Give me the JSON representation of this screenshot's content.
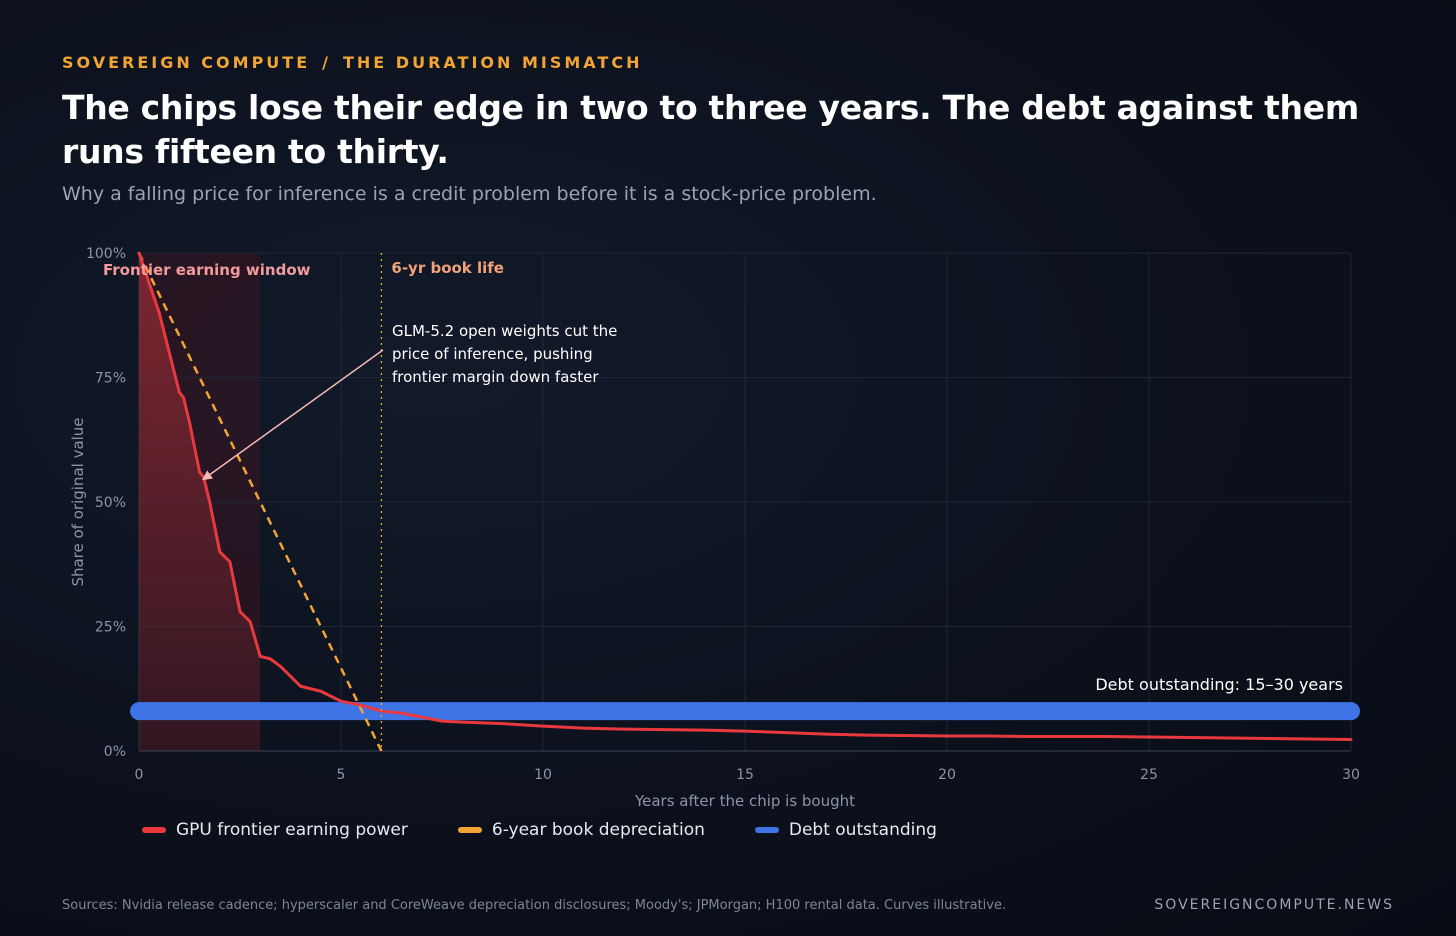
{
  "header": {
    "kicker_left": "SOVEREIGN COMPUTE",
    "kicker_sep": "/",
    "kicker_right": "THE DURATION MISMATCH",
    "title": "The chips lose their edge in two to three years. The debt against them runs fifteen to thirty.",
    "subtitle": "Why a falling price for inference is a credit problem before it is a stock-price problem."
  },
  "footer": {
    "sources": "Sources: Nvidia release cadence; hyperscaler and CoreWeave depreciation disclosures; Moody's; JPMorgan; H100 rental data. Curves illustrative.",
    "brand": "SOVEREIGNCOMPUTE.NEWS"
  },
  "colors": {
    "earning": "#e8393f",
    "depreciation": "#f2a533",
    "debt": "#3e74e6",
    "annotation": "#f6b8b4",
    "grid": "#1e2636"
  },
  "chart_data": {
    "type": "line",
    "xlabel": "Years after the chip is bought",
    "ylabel": "Share of original value",
    "xlim": [
      0,
      30
    ],
    "ylim": [
      0,
      100
    ],
    "x_ticks": [
      0,
      5,
      10,
      15,
      20,
      25,
      30
    ],
    "x_tick_labels": [
      "0",
      "5",
      "10",
      "15",
      "20",
      "25",
      "30"
    ],
    "y_ticks": [
      0,
      25,
      50,
      75,
      100
    ],
    "y_tick_labels": [
      "0%",
      "25%",
      "50%",
      "75%",
      "100%"
    ],
    "grid": true,
    "legend_position": "bottom-left",
    "series": [
      {
        "name": "GPU frontier earning power",
        "style": "solid",
        "x": [
          0,
          0.25,
          0.5,
          0.75,
          1,
          1.1,
          1.25,
          1.5,
          1.6,
          1.75,
          2,
          2.25,
          2.5,
          2.75,
          3,
          3.25,
          3.5,
          3.75,
          4,
          4.25,
          4.5,
          4.75,
          5,
          5.5,
          6,
          6.5,
          7,
          7.5,
          8,
          9,
          10,
          11,
          12,
          13,
          14,
          15,
          16,
          17,
          18,
          19,
          20,
          21,
          22,
          23,
          24,
          25,
          26,
          27,
          28,
          29,
          30
        ],
        "y": [
          100,
          94,
          88,
          80,
          72,
          71,
          66,
          56,
          55,
          50,
          40,
          38,
          28,
          26,
          19,
          18.5,
          17,
          15,
          13,
          12.5,
          12,
          11,
          10,
          9.2,
          8,
          7.6,
          6.8,
          6,
          5.8,
          5.5,
          5,
          4.6,
          4.4,
          4.3,
          4.2,
          4,
          3.7,
          3.4,
          3.2,
          3.1,
          3,
          3,
          2.9,
          2.9,
          2.9,
          2.8,
          2.7,
          2.6,
          2.5,
          2.4,
          2.3
        ]
      },
      {
        "name": "6-year book depreciation",
        "style": "dashed",
        "x": [
          0,
          6
        ],
        "y": [
          100,
          0
        ]
      },
      {
        "name": "Debt outstanding",
        "style": "thick-band",
        "x": [
          0,
          30
        ],
        "y": [
          8,
          8
        ]
      }
    ],
    "annotations": {
      "frontier_window": {
        "label": "Frontier earning window",
        "x_start": 0,
        "x_end": 3
      },
      "book_life": {
        "label": "6-yr book life",
        "x": 6
      },
      "glm_note": {
        "lines": [
          "GLM-5.2 open weights cut the",
          "price of inference, pushing",
          "frontier margin down faster"
        ],
        "arrow_target_x": 1.5,
        "arrow_target_y": 55
      },
      "debt_label": "Debt outstanding: 15–30 years"
    }
  }
}
